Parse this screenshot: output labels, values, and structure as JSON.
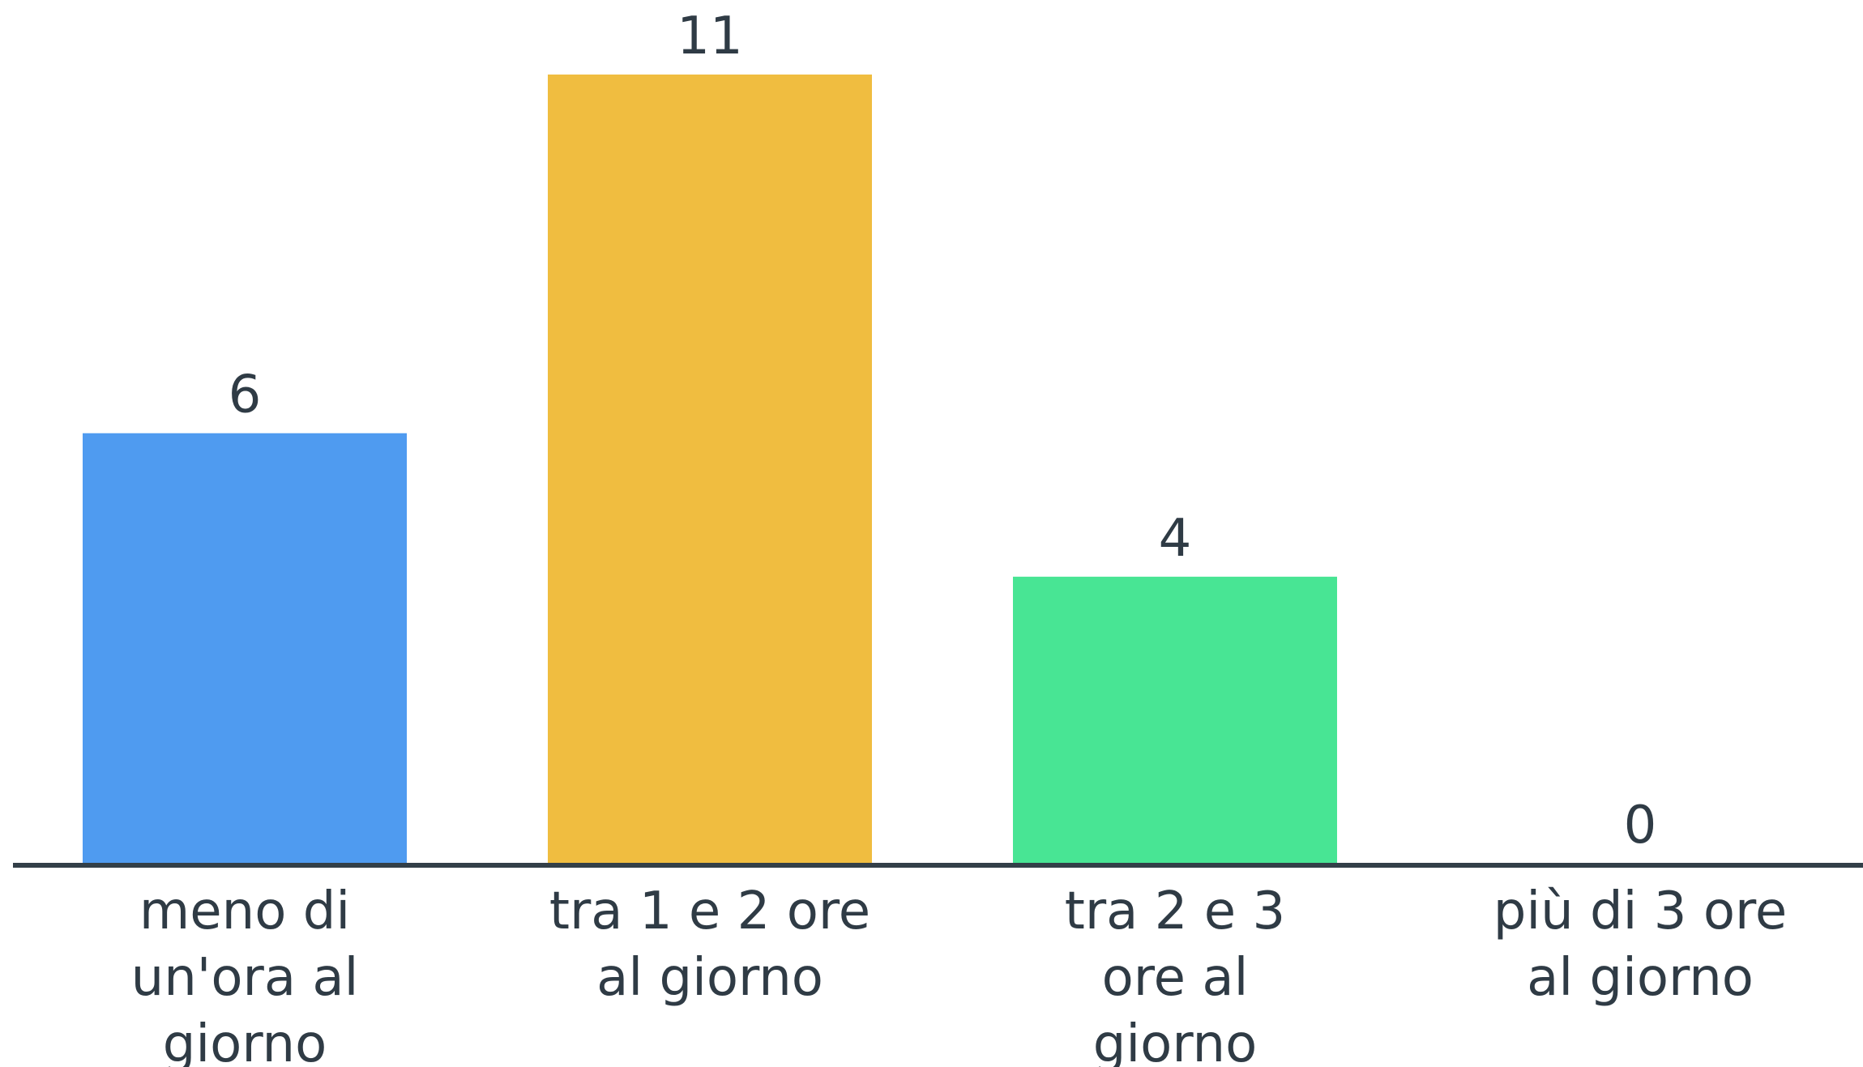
{
  "chart_data": {
    "type": "bar",
    "categories": [
      "meno di un'ora al giorno",
      "tra 1 e 2 ore al giorno",
      "tra 2 e 3 ore al giorno",
      "più di 3 ore al giorno"
    ],
    "category_label_lines": [
      [
        "meno di",
        "un'ora al",
        "giorno"
      ],
      [
        "tra 1 e 2 ore",
        "al giorno"
      ],
      [
        "tra 2 e 3",
        "ore al",
        "giorno"
      ],
      [
        "più di 3 ore",
        "al giorno"
      ]
    ],
    "values": [
      6,
      11,
      4,
      0
    ],
    "colors": [
      "#4f9bf0",
      "#f0bd40",
      "#48e594",
      "#9b6cf0"
    ],
    "axis_color": "#333f48",
    "text_color": "#2f3b45",
    "ylim": [
      0,
      11
    ],
    "grid": false,
    "legend": "none",
    "show_data_labels": true
  }
}
